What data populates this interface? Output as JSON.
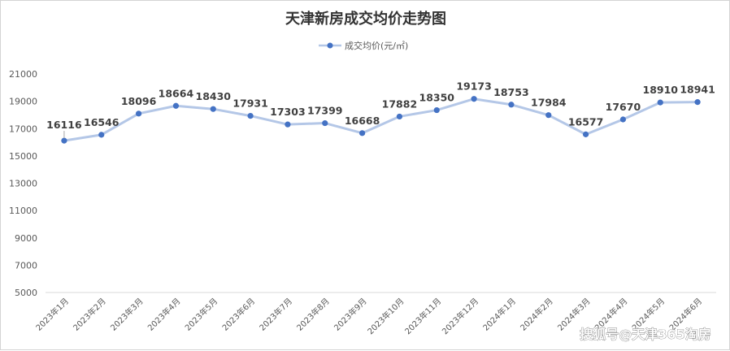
{
  "chart_data": {
    "type": "line",
    "title": "天津新房成交均价走势图",
    "categories": [
      "2023年1月",
      "2023年2月",
      "2023年3月",
      "2023年4月",
      "2023年5月",
      "2023年6月",
      "2023年7月",
      "2023年8月",
      "2023年9月",
      "2023年10月",
      "2023年11月",
      "2023年12月",
      "2024年1月",
      "2024年2月",
      "2024年3月",
      "2024年4月",
      "2024年5月",
      "2024年6月"
    ],
    "series": [
      {
        "name": "成交均价(元/㎡)",
        "values": [
          16116,
          16546,
          18096,
          18664,
          18430,
          17931,
          17303,
          17399,
          16668,
          17882,
          18350,
          19173,
          18753,
          17984,
          16577,
          17670,
          18910,
          18941
        ]
      }
    ],
    "ylim": [
      5000,
      21000
    ],
    "yticks": [
      5000,
      7000,
      9000,
      11000,
      13000,
      15000,
      17000,
      19000,
      21000
    ],
    "legend_position": "top-center",
    "grid": false,
    "line_color": "#b4c7e7",
    "marker_color": "#4472c4"
  },
  "watermark": "搜狐号@天津365淘房"
}
